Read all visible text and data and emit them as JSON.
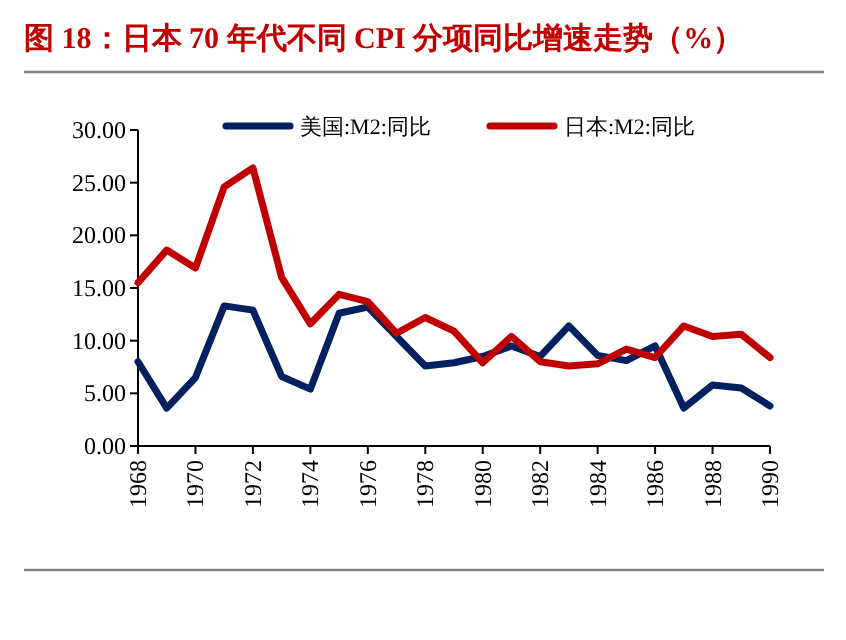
{
  "chart_data": {
    "type": "line",
    "title": "图 18：日本 70 年代不同 CPI 分项同比增速走势（%）",
    "x": [
      1968,
      1969,
      1970,
      1971,
      1972,
      1973,
      1974,
      1975,
      1976,
      1977,
      1978,
      1979,
      1980,
      1981,
      1982,
      1983,
      1984,
      1985,
      1986,
      1987,
      1988,
      1989,
      1990
    ],
    "series": [
      {
        "name": "美国:M2:同比",
        "color": "#002060",
        "values": [
          8.0,
          3.6,
          6.5,
          13.3,
          12.9,
          6.6,
          5.4,
          12.6,
          13.2,
          10.4,
          7.6,
          7.9,
          8.5,
          9.5,
          8.5,
          11.4,
          8.6,
          8.1,
          9.5,
          3.6,
          5.8,
          5.5,
          3.8
        ]
      },
      {
        "name": "日本:M2:同比",
        "color": "#c00000",
        "values": [
          15.5,
          18.6,
          16.9,
          24.6,
          26.4,
          16.0,
          11.6,
          14.4,
          13.7,
          10.7,
          12.2,
          10.9,
          7.9,
          10.4,
          8.0,
          7.6,
          7.8,
          9.2,
          8.4,
          11.4,
          10.4,
          10.6,
          8.4
        ]
      }
    ],
    "xlim": [
      1968,
      1990
    ],
    "xticks": [
      1968,
      1970,
      1972,
      1974,
      1976,
      1978,
      1980,
      1982,
      1984,
      1986,
      1988,
      1990
    ],
    "ylim": [
      0,
      30
    ],
    "yticks": [
      {
        "value": 0,
        "label": "0.00"
      },
      {
        "value": 5,
        "label": "5.00"
      },
      {
        "value": 10,
        "label": "10.00"
      },
      {
        "value": 15,
        "label": "15.00"
      },
      {
        "value": 20,
        "label": "20.00"
      },
      {
        "value": 25,
        "label": "25.00"
      },
      {
        "value": 30,
        "label": "30.00"
      }
    ],
    "legend": "top",
    "grid": false,
    "marker": "none",
    "line_style": "solid"
  }
}
